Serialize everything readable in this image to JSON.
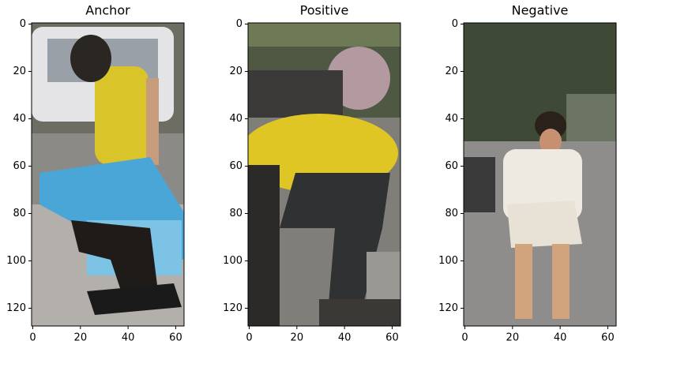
{
  "chart_data": [
    {
      "type": "image",
      "title": "Anchor",
      "xlim": [
        -0.5,
        63.5
      ],
      "ylim": [
        127.5,
        -0.5
      ],
      "xticks": [
        0,
        20,
        40,
        60
      ],
      "yticks": [
        0,
        20,
        40,
        60,
        80,
        100,
        120
      ]
    },
    {
      "type": "image",
      "title": "Positive",
      "xlim": [
        -0.5,
        63.5
      ],
      "ylim": [
        127.5,
        -0.5
      ],
      "xticks": [
        0,
        20,
        40,
        60
      ],
      "yticks": [
        0,
        20,
        40,
        60,
        80,
        100,
        120
      ]
    },
    {
      "type": "image",
      "title": "Negative",
      "xlim": [
        -0.5,
        63.5
      ],
      "ylim": [
        127.5,
        -0.5
      ],
      "xticks": [
        0,
        20,
        40,
        60
      ],
      "yticks": [
        0,
        20,
        40,
        60,
        80,
        100,
        120
      ]
    }
  ]
}
